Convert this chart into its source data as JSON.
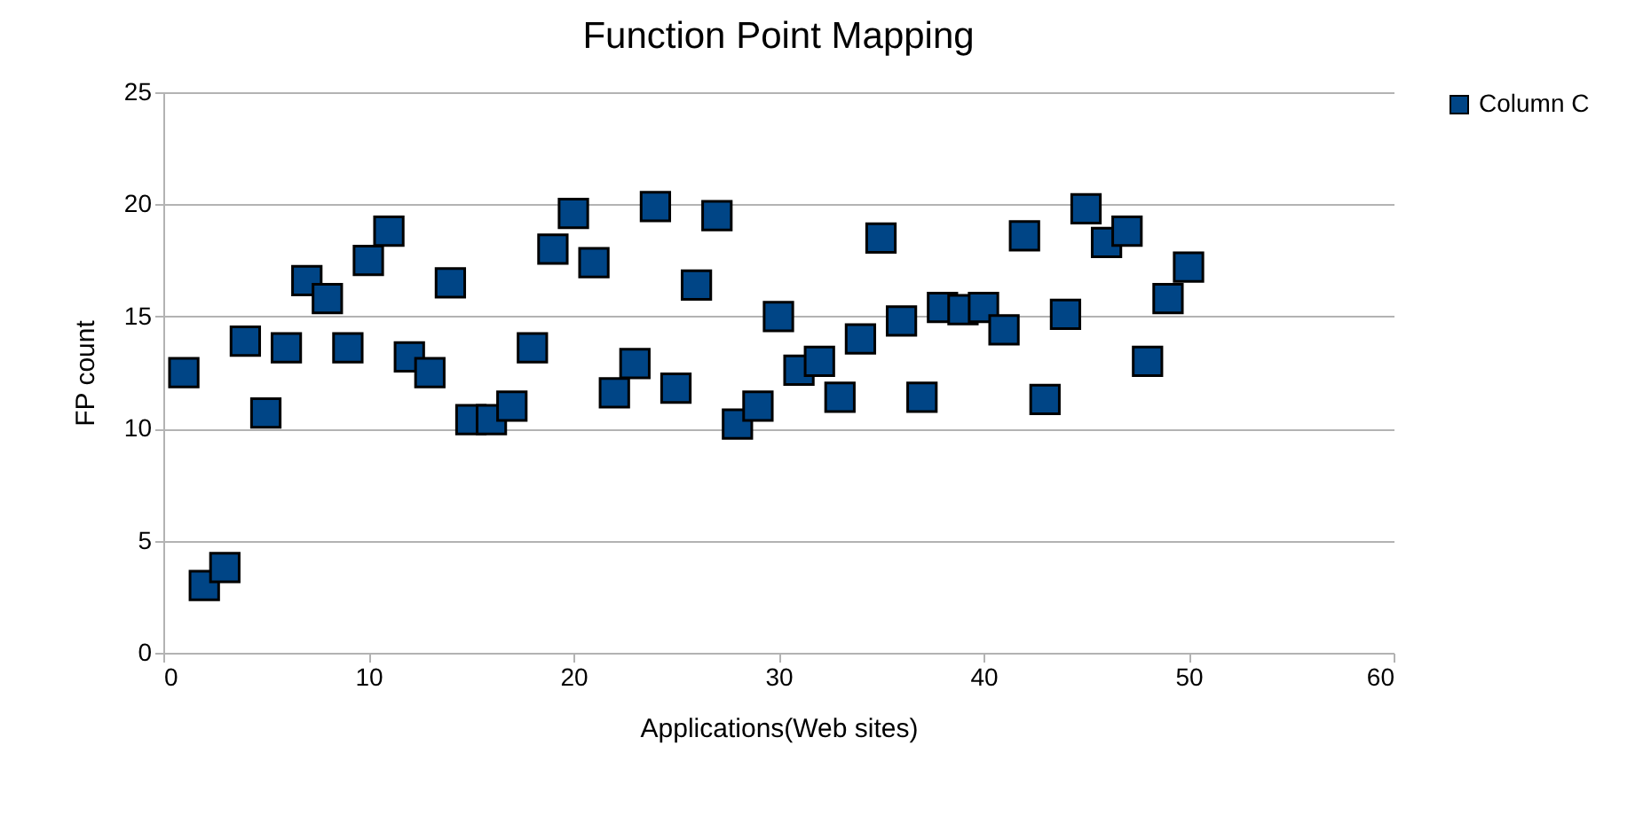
{
  "chart_data": {
    "type": "scatter",
    "title": "Function Point Mapping",
    "xlabel": "Applications(Web sites)",
    "ylabel": "FP count",
    "x": [
      1,
      2,
      3,
      4,
      5,
      6,
      7,
      8,
      9,
      10,
      11,
      12,
      13,
      14,
      15,
      16,
      17,
      18,
      19,
      20,
      21,
      22,
      23,
      24,
      25,
      26,
      27,
      28,
      29,
      30,
      31,
      32,
      33,
      34,
      35,
      36,
      37,
      38,
      39,
      40,
      41,
      42,
      43,
      44,
      45,
      46,
      47,
      48,
      49,
      50
    ],
    "series": [
      {
        "name": "Column C",
        "color": "#004586",
        "values": [
          12.5,
          3.0,
          3.8,
          13.9,
          10.7,
          13.6,
          16.6,
          15.8,
          13.6,
          17.5,
          18.8,
          13.2,
          12.5,
          16.5,
          10.4,
          10.4,
          11.0,
          13.6,
          18.0,
          19.6,
          17.4,
          11.6,
          12.9,
          19.9,
          11.8,
          16.4,
          19.5,
          10.2,
          11.0,
          15.0,
          12.6,
          13.0,
          11.4,
          14.0,
          18.5,
          14.8,
          11.4,
          15.4,
          15.3,
          15.4,
          14.4,
          18.6,
          11.3,
          15.1,
          19.8,
          18.3,
          18.8,
          13.0,
          15.8,
          17.2
        ]
      }
    ],
    "xlim": [
      0,
      60
    ],
    "xticks": [
      0,
      10,
      20,
      30,
      40,
      50,
      60
    ],
    "ylim": [
      0,
      25
    ],
    "yticks": [
      0,
      5,
      10,
      15,
      20,
      25
    ],
    "grid": "y",
    "legend": "right",
    "marker": "square"
  }
}
